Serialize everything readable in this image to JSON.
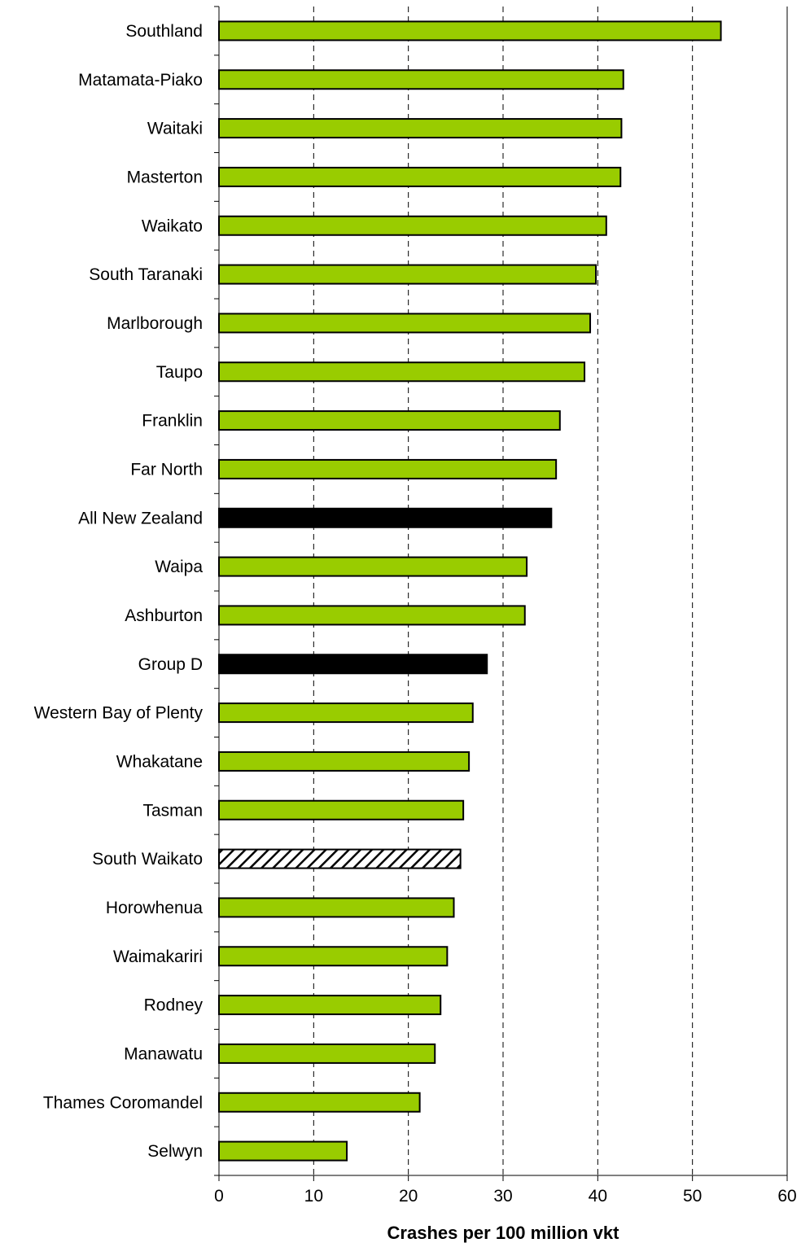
{
  "chart_data": {
    "type": "bar",
    "orientation": "horizontal",
    "title": "",
    "xlabel": "Crashes per 100 million vkt",
    "ylabel": "",
    "xlim": [
      0,
      60
    ],
    "xticks": [
      0,
      10,
      20,
      30,
      40,
      50,
      60
    ],
    "grid": "vertical dashed lines at major x ticks",
    "legend": "none",
    "colors": {
      "district": "#99CC00",
      "aggregate": "#000000",
      "highlight_hatch": "#000000",
      "highlight_background": "#ffffff",
      "bar_outline": "#000000"
    },
    "categories": [
      "Southland",
      "Matamata-Piako",
      "Waitaki",
      "Masterton",
      "Waikato",
      "South Taranaki",
      "Marlborough",
      "Taupo",
      "Franklin",
      "Far North",
      "All New Zealand",
      "Waipa",
      "Ashburton",
      "Group D",
      "Western Bay of Plenty",
      "Whakatane",
      "Tasman",
      "South Waikato",
      "Horowhenua",
      "Waimakariri",
      "Rodney",
      "Manawatu",
      "Thames Coromandel",
      "Selwyn"
    ],
    "values": [
      53.0,
      42.7,
      42.5,
      42.4,
      40.9,
      39.8,
      39.2,
      38.6,
      36.0,
      35.6,
      35.1,
      32.5,
      32.3,
      28.3,
      26.8,
      26.4,
      25.8,
      25.5,
      24.8,
      24.1,
      23.4,
      22.8,
      21.2,
      13.5
    ],
    "bar_styles": [
      "district",
      "district",
      "district",
      "district",
      "district",
      "district",
      "district",
      "district",
      "district",
      "district",
      "aggregate",
      "district",
      "district",
      "aggregate",
      "district",
      "district",
      "district",
      "highlight",
      "district",
      "district",
      "district",
      "district",
      "district",
      "district"
    ]
  }
}
